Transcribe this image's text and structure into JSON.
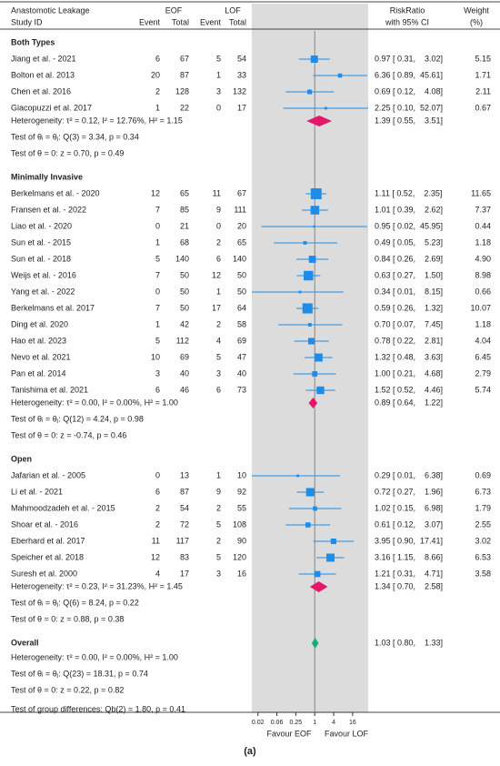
{
  "chart_data": {
    "type": "forest",
    "x_scale": "log",
    "xlim": [
      0.01,
      50
    ],
    "xticks": [
      {
        "value": 0.015625,
        "label": "0.02"
      },
      {
        "value": 0.0625,
        "label": "0.06"
      },
      0.25,
      1,
      4,
      16
    ],
    "header": {
      "title": "Anastomotic Leakage",
      "study_col": "Study ID",
      "group_a": "EOF",
      "group_b": "LOF",
      "event": "Event",
      "total": "Total",
      "effect": "RiskRatio",
      "effect_sub": "with 95% CI",
      "weight": "Weight",
      "weight_sub": "(%)"
    },
    "favour_left": "Favour EOF",
    "favour_right": "Favour LOF",
    "caption": "(a)",
    "study_color": "#1f8ce8",
    "groups": [
      {
        "name": "Both Types",
        "color": "#e5176b",
        "studies": [
          {
            "name": "Jiang et al. - 2021",
            "eof_event": 6,
            "eof_total": 67,
            "lof_event": 5,
            "lof_total": 54,
            "rr": 0.97,
            "lo": 0.31,
            "hi": 3.02,
            "ci_label": "0.97 [ 0.31,    3.02]",
            "weight": 5.15
          },
          {
            "name": "Bolton et al. 2013",
            "eof_event": 20,
            "eof_total": 87,
            "lof_event": 1,
            "lof_total": 33,
            "rr": 6.36,
            "lo": 0.89,
            "hi": 45.61,
            "ci_label": "6.36 [ 0.89,  45.61]",
            "weight": 1.71
          },
          {
            "name": "Chen et al. 2016",
            "eof_event": 2,
            "eof_total": 128,
            "lof_event": 3,
            "lof_total": 132,
            "rr": 0.69,
            "lo": 0.12,
            "hi": 4.08,
            "ci_label": "0.69 [ 0.12,    4.08]",
            "weight": 2.11
          },
          {
            "name": "Giacopuzzi et al. 2017",
            "eof_event": 1,
            "eof_total": 22,
            "lof_event": 0,
            "lof_total": 17,
            "rr": 2.25,
            "lo": 0.1,
            "hi": 52.07,
            "ci_label": "2.25 [ 0.10,  52.07]",
            "weight": 0.67
          }
        ],
        "pooled": {
          "rr": 1.39,
          "lo": 0.55,
          "hi": 3.51,
          "ci_label": "1.39 [ 0.55,    3.51]"
        },
        "heterogeneity": "Heterogeneity: τ² = 0.12, I² = 12.76%, H² = 1.15",
        "test_homogeneity": "Test of θᵢ = θⱼ: Q(3) = 3.34, p = 0.34",
        "test_effect": "Test of θ = 0: z = 0.70, p = 0.49"
      },
      {
        "name": "Minimally Invasive",
        "color": "#e5176b",
        "studies": [
          {
            "name": "Berkelmans et al. - 2020",
            "eof_event": 12,
            "eof_total": 65,
            "lof_event": 11,
            "lof_total": 67,
            "rr": 1.11,
            "lo": 0.52,
            "hi": 2.35,
            "ci_label": "1.11 [ 0.52,    2.35]",
            "weight": 11.65
          },
          {
            "name": "Fransen et al. - 2022",
            "eof_event": 7,
            "eof_total": 85,
            "lof_event": 9,
            "lof_total": 111,
            "rr": 1.01,
            "lo": 0.39,
            "hi": 2.62,
            "ci_label": "1.01 [ 0.39,    2.62]",
            "weight": 7.37
          },
          {
            "name": "Liao et al. - 2020",
            "eof_event": 0,
            "eof_total": 21,
            "lof_event": 0,
            "lof_total": 20,
            "rr": 0.95,
            "lo": 0.02,
            "hi": 45.95,
            "ci_label": "0.95 [ 0.02,  45.95]",
            "weight": 0.44
          },
          {
            "name": "Sun et al. - 2015",
            "eof_event": 1,
            "eof_total": 68,
            "lof_event": 2,
            "lof_total": 65,
            "rr": 0.49,
            "lo": 0.05,
            "hi": 5.23,
            "ci_label": "0.49 [ 0.05,    5.23]",
            "weight": 1.18
          },
          {
            "name": "Sun et al. - 2018",
            "eof_event": 5,
            "eof_total": 140,
            "lof_event": 6,
            "lof_total": 140,
            "rr": 0.84,
            "lo": 0.26,
            "hi": 2.69,
            "ci_label": "0.84 [ 0.26,    2.69]",
            "weight": 4.9,
            "weight_label": "4.90"
          },
          {
            "name": "Weijs et al. - 2016",
            "eof_event": 7,
            "eof_total": 50,
            "lof_event": 12,
            "lof_total": 50,
            "rr": 0.63,
            "lo": 0.27,
            "hi": 1.5,
            "ci_label": "0.63 [ 0.27,    1.50]",
            "weight": 8.98
          },
          {
            "name": "Yang et al. - 2022",
            "eof_event": 0,
            "eof_total": 50,
            "lof_event": 1,
            "lof_total": 50,
            "rr": 0.34,
            "lo": 0.01,
            "hi": 8.15,
            "ci_label": "0.34 [ 0.01,    8.15]",
            "weight": 0.66
          },
          {
            "name": "Berkelmans et al. 2017",
            "eof_event": 7,
            "eof_total": 50,
            "lof_event": 17,
            "lof_total": 64,
            "rr": 0.59,
            "lo": 0.26,
            "hi": 1.32,
            "ci_label": "0.59 [ 0.26,    1.32]",
            "weight": 10.07
          },
          {
            "name": "Ding et al. 2020",
            "eof_event": 1,
            "eof_total": 42,
            "lof_event": 2,
            "lof_total": 58,
            "rr": 0.7,
            "lo": 0.07,
            "hi": 7.45,
            "ci_label": "0.70 [ 0.07,    7.45]",
            "weight": 1.18
          },
          {
            "name": "Hao et al. 2023",
            "eof_event": 5,
            "eof_total": 112,
            "lof_event": 4,
            "lof_total": 69,
            "rr": 0.78,
            "lo": 0.22,
            "hi": 2.81,
            "ci_label": "0.78 [ 0.22,    2.81]",
            "weight": 4.04
          },
          {
            "name": "Nevo et al. 2021",
            "eof_event": 10,
            "eof_total": 69,
            "lof_event": 5,
            "lof_total": 47,
            "rr": 1.32,
            "lo": 0.48,
            "hi": 3.63,
            "ci_label": "1.32 [ 0.48,    3.63]",
            "weight": 6.45
          },
          {
            "name": "Pan et al. 2014",
            "eof_event": 3,
            "eof_total": 40,
            "lof_event": 3,
            "lof_total": 40,
            "rr": 1.0,
            "lo": 0.21,
            "hi": 4.68,
            "ci_label": "1.00 [ 0.21,    4.68]",
            "weight": 2.79
          },
          {
            "name": "Tanishima et al. 2021",
            "eof_event": 6,
            "eof_total": 46,
            "lof_event": 6,
            "lof_total": 73,
            "rr": 1.52,
            "lo": 0.52,
            "hi": 4.46,
            "ci_label": "1.52 [ 0.52,    4.46]",
            "weight": 5.74
          }
        ],
        "pooled": {
          "rr": 0.89,
          "lo": 0.64,
          "hi": 1.22,
          "ci_label": "0.89 [ 0.64,    1.22]"
        },
        "heterogeneity": "Heterogeneity: τ² = 0.00, I² = 0.00%, H² = 1.00",
        "test_homogeneity": "Test of θᵢ = θⱼ: Q(12) = 4.24, p = 0.98",
        "test_effect": "Test of θ = 0: z = -0.74, p = 0.46"
      },
      {
        "name": "Open",
        "color": "#e5176b",
        "studies": [
          {
            "name": "Jafarian et al. - 2005",
            "eof_event": 0,
            "eof_total": 13,
            "lof_event": 1,
            "lof_total": 10,
            "rr": 0.29,
            "lo": 0.01,
            "hi": 6.38,
            "ci_label": "0.29 [ 0.01,    6.38]",
            "weight": 0.69
          },
          {
            "name": "Li et al. - 2021",
            "eof_event": 6,
            "eof_total": 87,
            "lof_event": 9,
            "lof_total": 92,
            "rr": 0.72,
            "lo": 0.27,
            "hi": 1.96,
            "ci_label": "0.72 [ 0.27,    1.96]",
            "weight": 6.73
          },
          {
            "name": "Mahmoodzadeh et al. - 2015",
            "eof_event": 2,
            "eof_total": 54,
            "lof_event": 2,
            "lof_total": 55,
            "rr": 1.02,
            "lo": 0.15,
            "hi": 6.98,
            "ci_label": "1.02 [ 0.15,    6.98]",
            "weight": 1.79
          },
          {
            "name": "Shoar et al. - 2016",
            "eof_event": 2,
            "eof_total": 72,
            "lof_event": 5,
            "lof_total": 108,
            "rr": 0.61,
            "lo": 0.12,
            "hi": 3.07,
            "ci_label": "0.61 [ 0.12,    3.07]",
            "weight": 2.55
          },
          {
            "name": "Eberhard et al. 2017",
            "eof_event": 11,
            "eof_total": 117,
            "lof_event": 2,
            "lof_total": 90,
            "rr": 3.95,
            "lo": 0.9,
            "hi": 17.41,
            "ci_label": "3.95 [ 0.90,  17.41]",
            "weight": 3.02
          },
          {
            "name": "Speicher et al. 2018",
            "eof_event": 12,
            "eof_total": 83,
            "lof_event": 5,
            "lof_total": 120,
            "rr": 3.16,
            "lo": 1.15,
            "hi": 8.66,
            "ci_label": "3.16 [ 1.15,    8.66]",
            "weight": 6.53
          },
          {
            "name": "Suresh et al. 2000",
            "eof_event": 4,
            "eof_total": 17,
            "lof_event": 3,
            "lof_total": 16,
            "rr": 1.21,
            "lo": 0.31,
            "hi": 4.71,
            "ci_label": "1.21 [ 0.31,    4.71]",
            "weight": 3.58
          }
        ],
        "pooled": {
          "rr": 1.34,
          "lo": 0.7,
          "hi": 2.58,
          "ci_label": "1.34 [ 0.70,    2.58]"
        },
        "heterogeneity": "Heterogeneity: τ² = 0.23, I² = 31.23%, H² = 1.45",
        "test_homogeneity": "Test of θᵢ = θⱼ: Q(6) = 8.24, p = 0.22",
        "test_effect": "Test of θ = 0: z = 0.88, p = 0.38"
      }
    ],
    "overall": {
      "name": "Overall",
      "color": "#19ad7c",
      "rr": 1.03,
      "lo": 0.8,
      "hi": 1.33,
      "ci_label": "1.03 [ 0.80,    1.33]",
      "heterogeneity": "Heterogeneity: τ² = 0.00, I² = 0.00%, H² = 1.00",
      "test_homogeneity": "Test of θᵢ = θⱼ: Q(23) = 18.31, p = 0.74",
      "test_effect": "Test of θ = 0: z = 0.22, p = 0.82",
      "group_test": "Test of group differences: Qb(2) = 1.80, p = 0.41"
    }
  }
}
